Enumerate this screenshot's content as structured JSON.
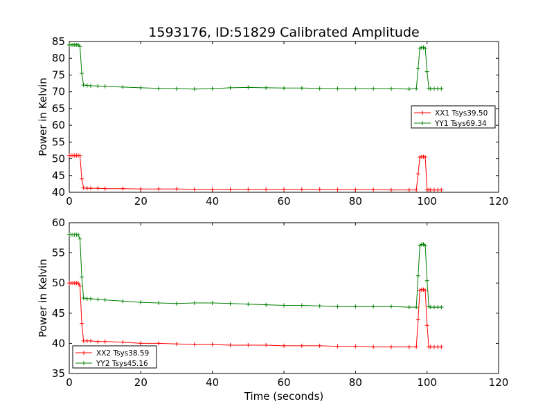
{
  "figure": {
    "title": "1593176, ID:51829 Calibrated Amplitude",
    "xlabel": "Time (seconds)"
  },
  "chart_data": [
    {
      "type": "line",
      "ylabel": "Power in Kelvin",
      "xlim": [
        0,
        120
      ],
      "ylim": [
        40,
        85
      ],
      "xticks": [
        0,
        20,
        40,
        60,
        80,
        100,
        120
      ],
      "yticks": [
        40,
        45,
        50,
        55,
        60,
        65,
        70,
        75,
        80,
        85
      ],
      "legend_position": "center-right",
      "series": [
        {
          "name": "XX1 Tsys39.50",
          "color": "#ff0000",
          "marker": "+",
          "x": [
            0,
            0.5,
            1,
            1.5,
            2,
            2.5,
            3,
            3.5,
            4,
            5,
            6,
            8,
            10,
            15,
            20,
            25,
            30,
            35,
            40,
            45,
            50,
            55,
            60,
            65,
            70,
            75,
            80,
            85,
            90,
            95,
            97,
            97.5,
            98,
            98.5,
            99,
            99.5,
            100,
            100.5,
            101,
            102,
            103,
            104
          ],
          "y": [
            51,
            51,
            51,
            51,
            51,
            51,
            51,
            44,
            41.3,
            41.2,
            41.2,
            41.2,
            41.1,
            41.1,
            41,
            41,
            41,
            40.9,
            40.9,
            40.9,
            40.9,
            40.9,
            40.9,
            40.9,
            40.9,
            40.8,
            40.8,
            40.8,
            40.7,
            40.7,
            40.7,
            45.5,
            50.5,
            50.6,
            50.6,
            50.5,
            40.8,
            40.7,
            40.7,
            40.7,
            40.7,
            40.7
          ]
        },
        {
          "name": "YY1 Tsys69.34",
          "color": "#008000",
          "marker": "+",
          "x": [
            0,
            0.5,
            1,
            1.5,
            2,
            2.5,
            3,
            3.5,
            4,
            5,
            6,
            8,
            10,
            15,
            20,
            25,
            30,
            35,
            40,
            45,
            50,
            55,
            60,
            65,
            70,
            75,
            80,
            85,
            90,
            95,
            97,
            97.5,
            98,
            98.5,
            99,
            99.5,
            100,
            100.5,
            101,
            102,
            103,
            104
          ],
          "y": [
            84,
            84,
            84,
            84,
            84,
            84,
            83.5,
            75.5,
            72,
            71.9,
            71.8,
            71.7,
            71.6,
            71.4,
            71.2,
            71,
            70.9,
            70.8,
            70.9,
            71.2,
            71.3,
            71.2,
            71.1,
            71.1,
            71,
            70.9,
            70.9,
            70.9,
            70.9,
            70.8,
            70.9,
            77,
            83,
            83.2,
            83.2,
            83,
            76,
            71,
            70.9,
            70.9,
            70.9,
            70.9
          ]
        }
      ]
    },
    {
      "type": "line",
      "ylabel": "Power in Kelvin",
      "xlim": [
        0,
        120
      ],
      "ylim": [
        35,
        60
      ],
      "xticks": [
        0,
        20,
        40,
        60,
        80,
        100,
        120
      ],
      "yticks": [
        35,
        40,
        45,
        50,
        55,
        60
      ],
      "legend_position": "lower-left",
      "series": [
        {
          "name": "XX2 Tsys38.59",
          "color": "#ff0000",
          "marker": "+",
          "x": [
            0,
            0.5,
            1,
            1.5,
            2,
            2.5,
            3,
            3.5,
            4,
            5,
            6,
            8,
            10,
            15,
            20,
            25,
            30,
            35,
            40,
            45,
            50,
            55,
            60,
            65,
            70,
            75,
            80,
            85,
            90,
            95,
            97,
            97.5,
            98,
            98.5,
            99,
            99.5,
            100,
            100.5,
            101,
            102,
            103,
            104
          ],
          "y": [
            50,
            50,
            50,
            50,
            50,
            50,
            49.5,
            43.3,
            40.4,
            40.4,
            40.4,
            40.3,
            40.3,
            40.2,
            40,
            40,
            39.9,
            39.8,
            39.8,
            39.7,
            39.7,
            39.7,
            39.6,
            39.6,
            39.6,
            39.5,
            39.5,
            39.4,
            39.4,
            39.4,
            39.4,
            44,
            48.8,
            48.9,
            48.9,
            48.8,
            43,
            39.4,
            39.4,
            39.4,
            39.4,
            39.4
          ]
        },
        {
          "name": "YY2 Tsys45.16",
          "color": "#008000",
          "marker": "+",
          "x": [
            0,
            0.5,
            1,
            1.5,
            2,
            2.5,
            3,
            3.5,
            4,
            5,
            6,
            8,
            10,
            15,
            20,
            25,
            30,
            35,
            40,
            45,
            50,
            55,
            60,
            65,
            70,
            75,
            80,
            85,
            90,
            95,
            97,
            97.5,
            98,
            98.5,
            99,
            99.5,
            100,
            100.5,
            101,
            102,
            103,
            104
          ],
          "y": [
            58,
            58,
            58,
            58,
            58,
            58,
            57.3,
            51,
            47.5,
            47.4,
            47.4,
            47.3,
            47.2,
            47,
            46.8,
            46.7,
            46.6,
            46.7,
            46.7,
            46.6,
            46.5,
            46.4,
            46.3,
            46.3,
            46.2,
            46.1,
            46.1,
            46.1,
            46.1,
            46,
            46,
            51.2,
            56.2,
            56.4,
            56.4,
            56.2,
            50.4,
            46.1,
            46,
            46,
            46,
            46
          ]
        }
      ]
    }
  ]
}
